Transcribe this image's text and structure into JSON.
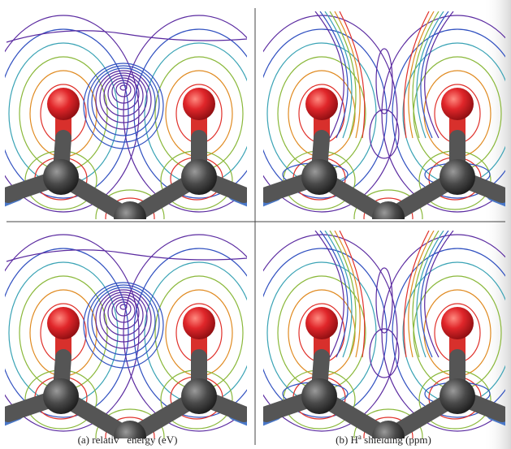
{
  "captions": [
    {
      "text": "(a) relativ   energy (eV)"
    },
    {
      "prefix": "(b) H",
      "sup": "a",
      "suffix": " shielding (ppm)"
    }
  ]
}
